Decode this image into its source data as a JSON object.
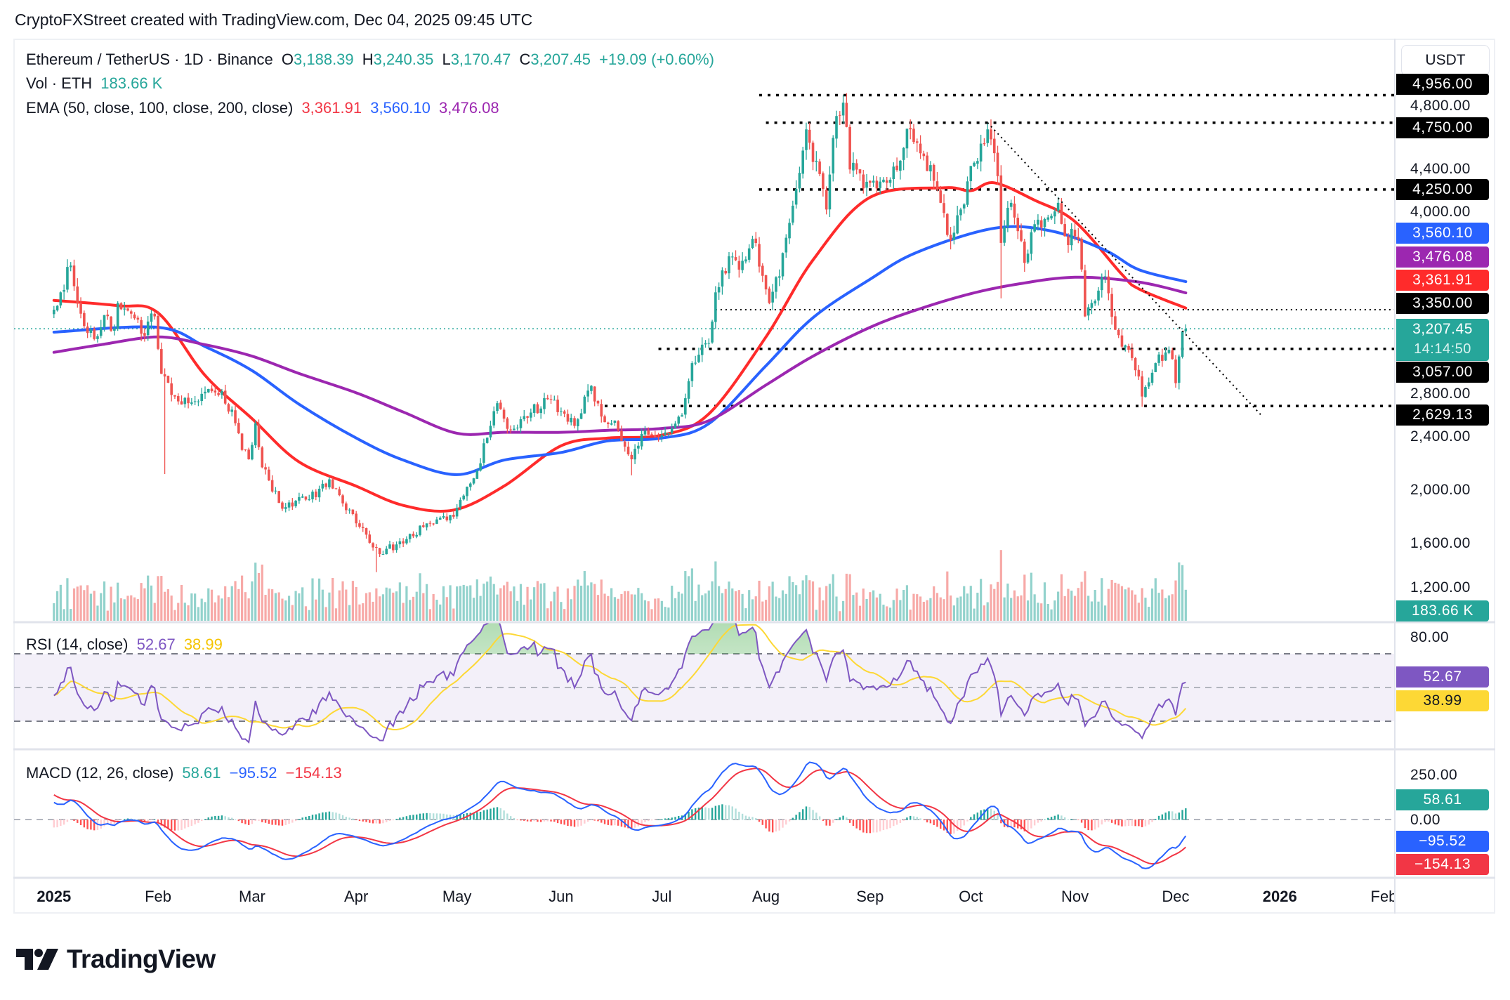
{
  "header": {
    "attribution": "CryptoFXStreet created with TradingView.com, Dec 04, 2025 09:45 UTC"
  },
  "legend": {
    "symbol": "Ethereum / TetherUS · 1D · Binance",
    "o_label": "O",
    "open": "3,188.39",
    "h_label": "H",
    "high": "3,240.35",
    "l_label": "L",
    "low": "3,170.47",
    "c_label": "C",
    "close": "3,207.45",
    "change": "+19.09 (+0.60%)",
    "vol_label": "Vol · ETH",
    "vol_value": "183.66 K",
    "ema_label": "EMA (50, close, 100, close, 200, close)",
    "ema50": "3,361.91",
    "ema100": "3,560.10",
    "ema200": "3,476.08"
  },
  "rsi": {
    "label": "RSI (14, close)",
    "value": "52.67",
    "ma": "38.99",
    "axis_tick": "80.00"
  },
  "macd": {
    "label": "MACD (12, 26, close)",
    "histogram": "58.61",
    "macd": "−95.52",
    "signal": "−154.13",
    "axis_tick": "250.00",
    "zero_tick": "0.00"
  },
  "price_axis": {
    "currency": "USDT",
    "ticks": [
      "4,800.00",
      "4,400.00",
      "4,000.00",
      "2,800.00",
      "2,400.00",
      "2,000.00",
      "1,600.00",
      "1,200.00"
    ],
    "badges": [
      {
        "text": "4,956.00",
        "color": "#000000"
      },
      {
        "text": "4,750.00",
        "color": "#000000"
      },
      {
        "text": "4,250.00",
        "color": "#000000"
      },
      {
        "text": "3,560.10",
        "color": "#2962ff"
      },
      {
        "text": "3,476.08",
        "color": "#9c27b0"
      },
      {
        "text": "3,361.91",
        "color": "#ff2b2b"
      },
      {
        "text": "3,350.00",
        "color": "#000000"
      },
      {
        "text": "3,207.45",
        "sub": "14:14:50",
        "color": "#26a69a"
      },
      {
        "text": "3,057.00",
        "color": "#000000"
      },
      {
        "text": "2,629.13",
        "color": "#000000"
      }
    ],
    "volume_badge": {
      "text": "183.66 K",
      "color": "#26a69a"
    }
  },
  "rsi_badges": [
    {
      "text": "52.67",
      "color": "#7e57c2"
    },
    {
      "text": "38.99",
      "color": "#fdd835"
    }
  ],
  "macd_badges": [
    {
      "text": "58.61",
      "color": "#26a69a"
    },
    {
      "text": "−95.52",
      "color": "#2962ff"
    },
    {
      "text": "−154.13",
      "color": "#f23645"
    }
  ],
  "time_axis": [
    {
      "text": "2025",
      "date": "2025-01-01",
      "bold": true
    },
    {
      "text": "Feb",
      "date": "2025-02-01"
    },
    {
      "text": "Mar",
      "date": "2025-03-01"
    },
    {
      "text": "Apr",
      "date": "2025-04-01"
    },
    {
      "text": "May",
      "date": "2025-05-01"
    },
    {
      "text": "Jun",
      "date": "2025-06-01"
    },
    {
      "text": "Jul",
      "date": "2025-07-01"
    },
    {
      "text": "Aug",
      "date": "2025-08-01"
    },
    {
      "text": "Sep",
      "date": "2025-09-01"
    },
    {
      "text": "Oct",
      "date": "2025-10-01"
    },
    {
      "text": "Nov",
      "date": "2025-11-01"
    },
    {
      "text": "Dec",
      "date": "2025-12-01"
    },
    {
      "text": "2026",
      "date": "2026-01-01",
      "bold": true
    },
    {
      "text": "Feb",
      "date": "2026-02-01"
    }
  ],
  "logo": "TradingView",
  "colors": {
    "up": "#26a69a",
    "down": "#ef5350",
    "ema50": "#ff2b2b",
    "ema100": "#2962ff",
    "ema200": "#9c27b0",
    "rsi": "#7e57c2",
    "rsi_ma": "#fdd835",
    "macd": "#2962ff",
    "signal": "#f23645"
  },
  "chart_data": {
    "type": "candlestick",
    "interval": "1D",
    "ylim": [
      1050,
      5100
    ],
    "y_unit": "USDT",
    "last_candle": {
      "date": "2025-12-04",
      "open": 3188.39,
      "high": 3240.35,
      "low": 3170.47,
      "close": 3207.45
    },
    "approx_closes": [
      [
        "2025-01-01",
        3350
      ],
      [
        "2025-01-06",
        3680
      ],
      [
        "2025-01-09",
        3320
      ],
      [
        "2025-01-13",
        3130
      ],
      [
        "2025-01-16",
        3310
      ],
      [
        "2025-01-19",
        3210
      ],
      [
        "2025-01-20",
        3400
      ],
      [
        "2025-01-24",
        3320
      ],
      [
        "2025-01-27",
        3170
      ],
      [
        "2025-01-31",
        3300
      ],
      [
        "2025-02-02",
        2870
      ],
      [
        "2025-02-03",
        2850
      ],
      [
        "2025-02-06",
        2700
      ],
      [
        "2025-02-10",
        2650
      ],
      [
        "2025-02-14",
        2720
      ],
      [
        "2025-02-20",
        2740
      ],
      [
        "2025-02-24",
        2500
      ],
      [
        "2025-02-26",
        2300
      ],
      [
        "2025-02-28",
        2230
      ],
      [
        "2025-03-02",
        2500
      ],
      [
        "2025-03-04",
        2170
      ],
      [
        "2025-03-10",
        1860
      ],
      [
        "2025-03-14",
        1920
      ],
      [
        "2025-03-18",
        1930
      ],
      [
        "2025-03-24",
        2080
      ],
      [
        "2025-03-28",
        1900
      ],
      [
        "2025-03-31",
        1820
      ],
      [
        "2025-04-06",
        1570
      ],
      [
        "2025-04-09",
        1520
      ],
      [
        "2025-04-10",
        1560
      ],
      [
        "2025-04-15",
        1600
      ],
      [
        "2025-04-22",
        1750
      ],
      [
        "2025-04-25",
        1780
      ],
      [
        "2025-04-30",
        1800
      ],
      [
        "2025-05-08",
        2200
      ],
      [
        "2025-05-09",
        2350
      ],
      [
        "2025-05-13",
        2650
      ],
      [
        "2025-05-17",
        2450
      ],
      [
        "2025-05-23",
        2580
      ],
      [
        "2025-05-28",
        2680
      ],
      [
        "2025-06-05",
        2480
      ],
      [
        "2025-06-10",
        2780
      ],
      [
        "2025-06-13",
        2550
      ],
      [
        "2025-06-17",
        2520
      ],
      [
        "2025-06-22",
        2230
      ],
      [
        "2025-06-25",
        2420
      ],
      [
        "2025-07-01",
        2410
      ],
      [
        "2025-07-07",
        2560
      ],
      [
        "2025-07-10",
        2950
      ],
      [
        "2025-07-15",
        3100
      ],
      [
        "2025-07-17",
        3480
      ],
      [
        "2025-07-21",
        3750
      ],
      [
        "2025-07-24",
        3650
      ],
      [
        "2025-07-28",
        3880
      ],
      [
        "2025-08-02",
        3400
      ],
      [
        "2025-08-05",
        3600
      ],
      [
        "2025-08-08",
        4000
      ],
      [
        "2025-08-13",
        4700
      ],
      [
        "2025-08-14",
        4600
      ],
      [
        "2025-08-19",
        4100
      ],
      [
        "2025-08-22",
        4800
      ],
      [
        "2025-08-24",
        4900
      ],
      [
        "2025-08-26",
        4400
      ],
      [
        "2025-09-01",
        4300
      ],
      [
        "2025-09-06",
        4300
      ],
      [
        "2025-09-13",
        4700
      ],
      [
        "2025-09-17",
        4500
      ],
      [
        "2025-09-22",
        4150
      ],
      [
        "2025-09-25",
        3870
      ],
      [
        "2025-09-28",
        4100
      ],
      [
        "2025-10-02",
        4450
      ],
      [
        "2025-10-06",
        4700
      ],
      [
        "2025-10-09",
        4350
      ],
      [
        "2025-10-10",
        3850
      ],
      [
        "2025-10-13",
        4150
      ],
      [
        "2025-10-17",
        3700
      ],
      [
        "2025-10-20",
        3990
      ],
      [
        "2025-10-27",
        4150
      ],
      [
        "2025-10-29",
        3900
      ],
      [
        "2025-11-02",
        3880
      ],
      [
        "2025-11-04",
        3300
      ],
      [
        "2025-11-06",
        3400
      ],
      [
        "2025-11-10",
        3600
      ],
      [
        "2025-11-13",
        3200
      ],
      [
        "2025-11-17",
        3050
      ],
      [
        "2025-11-20",
        2850
      ],
      [
        "2025-11-21",
        2700
      ],
      [
        "2025-11-25",
        2950
      ],
      [
        "2025-11-28",
        3030
      ],
      [
        "2025-11-30",
        2980
      ],
      [
        "2025-12-01",
        2800
      ],
      [
        "2025-12-02",
        3000
      ],
      [
        "2025-12-03",
        3188.39
      ],
      [
        "2025-12-04",
        3207.45
      ]
    ],
    "notable_wicks": [
      {
        "date": "2025-02-03",
        "low": 2120
      },
      {
        "date": "2025-04-07",
        "low": 1385
      },
      {
        "date": "2025-06-22",
        "low": 2110
      },
      {
        "date": "2025-08-24",
        "high": 4956
      },
      {
        "date": "2025-10-10",
        "low": 3435
      },
      {
        "date": "2025-11-21",
        "low": 2623
      }
    ],
    "ema": [
      {
        "period": 50,
        "points": [
          [
            "2025-01-01",
            3420
          ],
          [
            "2025-01-20",
            3380
          ],
          [
            "2025-02-01",
            3326
          ],
          [
            "2025-02-15",
            2858
          ],
          [
            "2025-03-01",
            2534
          ],
          [
            "2025-03-15",
            2210
          ],
          [
            "2025-04-01",
            2029
          ],
          [
            "2025-04-15",
            1885
          ],
          [
            "2025-04-30",
            1850
          ],
          [
            "2025-05-15",
            2029
          ],
          [
            "2025-06-01",
            2331
          ],
          [
            "2025-06-15",
            2389
          ],
          [
            "2025-07-01",
            2411
          ],
          [
            "2025-07-15",
            2570
          ],
          [
            "2025-08-01",
            3146
          ],
          [
            "2025-08-15",
            3722
          ],
          [
            "2025-09-01",
            4191
          ],
          [
            "2025-09-23",
            4263
          ],
          [
            "2025-10-01",
            4241
          ],
          [
            "2025-10-08",
            4300
          ],
          [
            "2025-10-20",
            4170
          ],
          [
            "2025-11-01",
            4010
          ],
          [
            "2025-11-15",
            3614
          ],
          [
            "2025-11-20",
            3506
          ],
          [
            "2025-12-04",
            3361.91
          ]
        ]
      },
      {
        "period": 100,
        "points": [
          [
            "2025-01-01",
            3182
          ],
          [
            "2025-02-01",
            3218
          ],
          [
            "2025-02-15",
            3074
          ],
          [
            "2025-03-01",
            2894
          ],
          [
            "2025-03-15",
            2642
          ],
          [
            "2025-04-01",
            2389
          ],
          [
            "2025-04-15",
            2224
          ],
          [
            "2025-05-01",
            2115
          ],
          [
            "2025-05-15",
            2224
          ],
          [
            "2025-06-01",
            2281
          ],
          [
            "2025-06-15",
            2368
          ],
          [
            "2025-07-01",
            2389
          ],
          [
            "2025-07-15",
            2497
          ],
          [
            "2025-08-01",
            2930
          ],
          [
            "2025-08-15",
            3290
          ],
          [
            "2025-09-01",
            3578
          ],
          [
            "2025-09-15",
            3780
          ],
          [
            "2025-10-08",
            3960
          ],
          [
            "2025-10-25",
            3939
          ],
          [
            "2025-11-10",
            3795
          ],
          [
            "2025-11-20",
            3650
          ],
          [
            "2025-12-04",
            3560.1
          ]
        ]
      },
      {
        "period": 200,
        "points": [
          [
            "2025-01-01",
            3031
          ],
          [
            "2025-01-15",
            3088
          ],
          [
            "2025-02-01",
            3146
          ],
          [
            "2025-02-15",
            3088
          ],
          [
            "2025-03-01",
            3002
          ],
          [
            "2025-03-15",
            2872
          ],
          [
            "2025-04-01",
            2728
          ],
          [
            "2025-04-15",
            2584
          ],
          [
            "2025-05-01",
            2425
          ],
          [
            "2025-05-15",
            2432
          ],
          [
            "2025-06-01",
            2432
          ],
          [
            "2025-06-15",
            2447
          ],
          [
            "2025-07-01",
            2461
          ],
          [
            "2025-07-15",
            2519
          ],
          [
            "2025-08-01",
            2786
          ],
          [
            "2025-08-15",
            3002
          ],
          [
            "2025-09-01",
            3218
          ],
          [
            "2025-09-15",
            3350
          ],
          [
            "2025-10-01",
            3470
          ],
          [
            "2025-10-15",
            3542
          ],
          [
            "2025-11-01",
            3593
          ],
          [
            "2025-11-20",
            3557
          ],
          [
            "2025-12-04",
            3476.08
          ]
        ]
      }
    ],
    "horizontal_levels": [
      {
        "price": 4956,
        "from": "2025-07-30"
      },
      {
        "price": 4750,
        "from": "2025-08-01"
      },
      {
        "price": 4250,
        "from": "2025-07-30"
      },
      {
        "price": 3350,
        "from": "2025-07-17",
        "style": "fine"
      },
      {
        "price": 3057,
        "from": "2025-06-30"
      },
      {
        "price": 2629.13,
        "from": "2025-06-14"
      }
    ],
    "current_price": 3207.45,
    "trendline": {
      "from": [
        "2025-10-06",
        4750
      ],
      "to": [
        "2025-12-27",
        2546
      ]
    },
    "rsi_levels": [
      70,
      50,
      30
    ]
  }
}
